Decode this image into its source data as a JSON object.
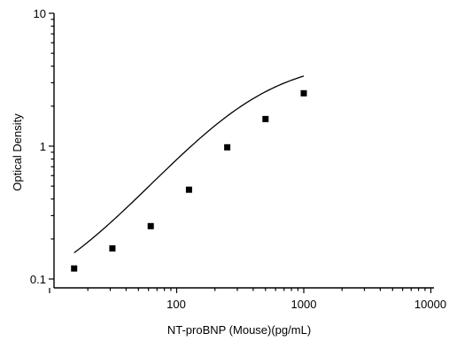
{
  "chart_data": {
    "type": "scatter",
    "xlabel": "NT-proBNP (Mouse)(pg/mL)",
    "ylabel": "Optical Density",
    "x_scale": "log",
    "y_scale": "log",
    "xlim": [
      10,
      10000
    ],
    "ylim": [
      0.1,
      10
    ],
    "x_tick_labels": [
      "100",
      "1000",
      "10000"
    ],
    "y_tick_labels": [
      "0.1",
      "1",
      "10"
    ],
    "grid": false,
    "series": [
      {
        "points": [
          {
            "x": 15.6,
            "y": 0.12
          },
          {
            "x": 31.2,
            "y": 0.17
          },
          {
            "x": 62.5,
            "y": 0.25
          },
          {
            "x": 125,
            "y": 0.47
          },
          {
            "x": 250,
            "y": 0.98
          },
          {
            "x": 500,
            "y": 1.6
          },
          {
            "x": 1000,
            "y": 2.5
          }
        ]
      }
    ],
    "fit_curve": {
      "model": "four-parameter logistic",
      "x_range": [
        15.6,
        1000
      ],
      "params": {
        "bottom": 0.06,
        "top": 4.5,
        "ec50": 400,
        "hill": 1.17
      }
    }
  }
}
